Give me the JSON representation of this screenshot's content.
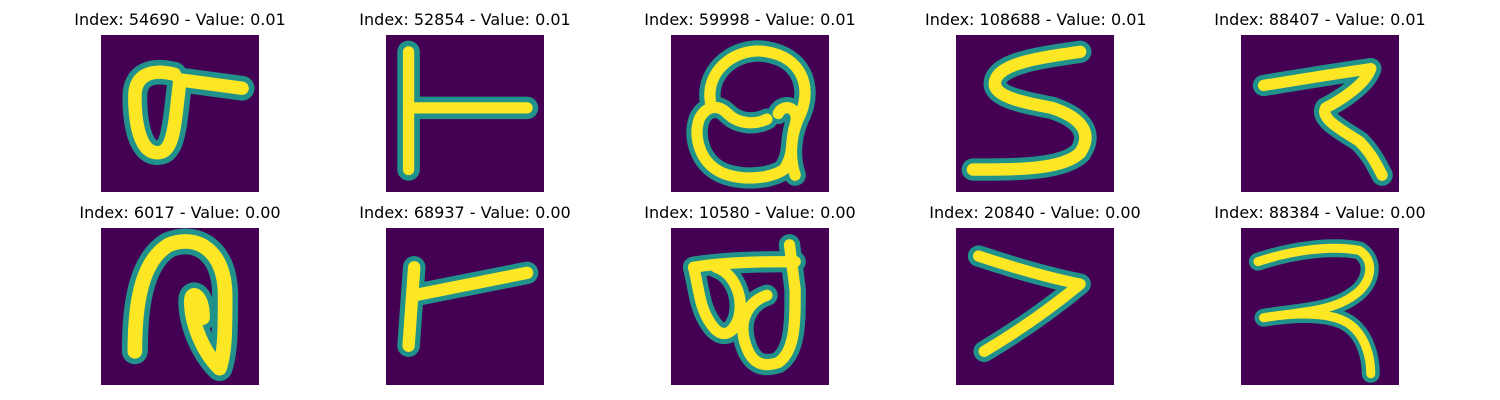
{
  "colors": {
    "background": "#440154",
    "stroke_edge": "#21918c",
    "stroke_mid": "#7ad151",
    "stroke_core": "#fde725"
  },
  "panels": [
    {
      "title": "Index: 54690 - Value: 0.01",
      "depicts": "handwritten character resembling a loop with a horizontal stroke to the right"
    },
    {
      "title": "Index: 52854 - Value: 0.01",
      "depicts": "handwritten character: vertical stroke with horizontal bar to the right"
    },
    {
      "title": "Index: 59998 - Value: 0.01",
      "depicts": "handwritten character resembling a looped shape"
    },
    {
      "title": "Index: 108688 - Value: 0.01",
      "depicts": "handwritten character resembling the letter S"
    },
    {
      "title": "Index: 88407 - Value: 0.01",
      "depicts": "handwritten character resembling a zigzag"
    },
    {
      "title": "Index: 6017 - Value: 0.00",
      "depicts": "handwritten character resembling an arch with inner stroke"
    },
    {
      "title": "Index: 68937 - Value: 0.00",
      "depicts": "handwritten character: vertical stroke with horizontal bar to the right"
    },
    {
      "title": "Index: 10580 - Value: 0.00",
      "depicts": "handwritten character with two connected loops"
    },
    {
      "title": "Index: 20840 - Value: 0.00",
      "depicts": "handwritten character resembling the digit 7"
    },
    {
      "title": "Index: 88384 - Value: 0.00",
      "depicts": "handwritten character resembling a hook shape"
    }
  ]
}
